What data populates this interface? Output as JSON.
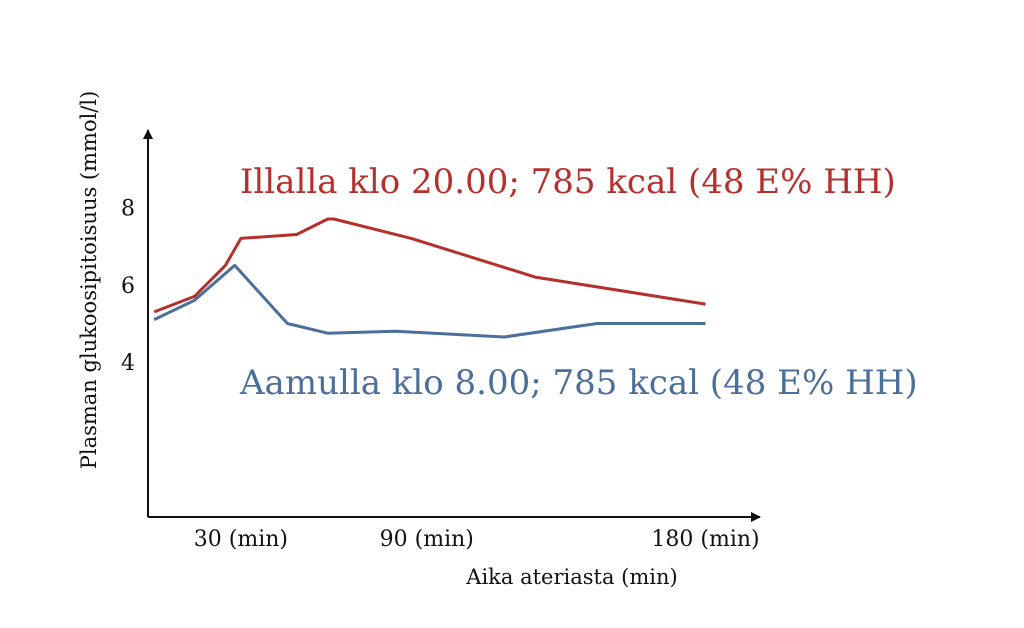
{
  "chart_data": {
    "type": "line",
    "title": "",
    "xlabel": "Aika ateriasta (min)",
    "ylabel": "Plasman glukoosipitoisuus (mmol/l)",
    "xlim": [
      0,
      195
    ],
    "ylim": [
      0,
      10
    ],
    "x_ticks": [
      {
        "value": 30,
        "label": "30 (min)"
      },
      {
        "value": 90,
        "label": "90 (min)"
      },
      {
        "value": 180,
        "label": "180 (min)"
      }
    ],
    "y_ticks": [
      {
        "value": 4,
        "label": "4"
      },
      {
        "value": 6,
        "label": "6"
      },
      {
        "value": 8,
        "label": "8"
      }
    ],
    "grid": false,
    "series": [
      {
        "name": "Illalla klo 20.00; 785 kcal (48 E% HH)",
        "color": "#b5302d",
        "x": [
          2,
          15,
          25,
          30,
          48,
          58,
          60,
          85,
          125,
          180
        ],
        "y": [
          5.3,
          5.7,
          6.5,
          7.2,
          7.3,
          7.7,
          7.7,
          7.2,
          6.2,
          5.5
        ]
      },
      {
        "name": "Aamulla klo 8.00; 785 kcal (48 E% HH)",
        "color": "#4b6e9a",
        "x": [
          2,
          15,
          28,
          45,
          58,
          80,
          115,
          145,
          180
        ],
        "y": [
          5.1,
          5.6,
          6.5,
          5.0,
          4.75,
          4.8,
          4.65,
          5.0,
          5.0
        ]
      }
    ]
  }
}
